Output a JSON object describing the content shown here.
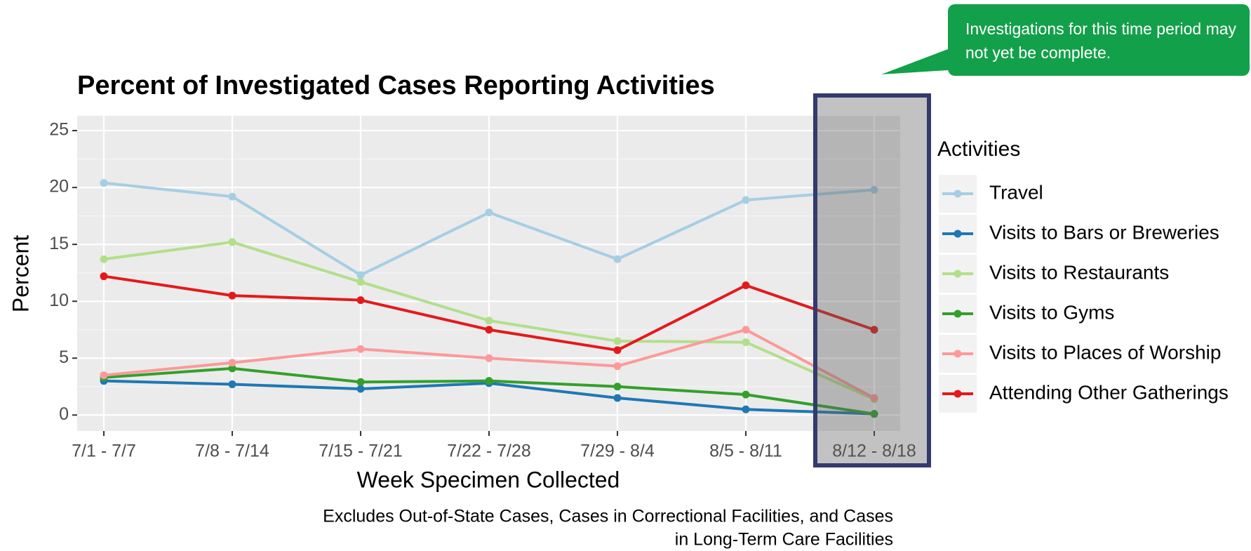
{
  "chart_data": {
    "type": "line",
    "title": "Percent of Investigated Cases Reporting Activities",
    "x_label": "Week Specimen Collected",
    "y_label": "Percent",
    "caption_lines": [
      "Excludes Out-of-State Cases, Cases in Correctional Facilities, and Cases",
      "in Long-Term Care Facilities"
    ],
    "annotation": "Investigations for this time period may not yet be complete.",
    "legend_title": "Activities",
    "categories": [
      "7/1 - 7/7",
      "7/8 - 7/14",
      "7/15 - 7/21",
      "7/22 - 7/28",
      "7/29 - 8/4",
      "8/5 - 8/11",
      "8/12 - 8/18"
    ],
    "series": [
      {
        "name": "Travel",
        "color": "#a6cee3",
        "values": [
          20.4,
          19.2,
          12.3,
          17.8,
          13.7,
          18.9,
          19.8
        ]
      },
      {
        "name": "Visits to Bars or Breweries",
        "color": "#1f78b4",
        "values": [
          3.0,
          2.7,
          2.3,
          2.8,
          1.5,
          0.5,
          0.1
        ]
      },
      {
        "name": "Visits to Restaurants",
        "color": "#b2df8a",
        "values": [
          13.7,
          15.2,
          11.7,
          8.3,
          6.5,
          6.4,
          1.4
        ]
      },
      {
        "name": "Visits to Gyms",
        "color": "#33a02c",
        "values": [
          3.3,
          4.1,
          2.9,
          3.0,
          2.5,
          1.8,
          0.1
        ]
      },
      {
        "name": "Visits to Places of Worship",
        "color": "#fb9a99",
        "values": [
          3.5,
          4.6,
          5.8,
          5.0,
          4.3,
          7.5,
          1.5
        ]
      },
      {
        "name": "Attending Other Gatherings",
        "color": "#e31a1c",
        "values": [
          12.2,
          10.5,
          10.1,
          7.5,
          5.7,
          11.4,
          7.5
        ]
      }
    ],
    "ylim": [
      -1.4,
      26.3
    ],
    "yticks": [
      0,
      5,
      10,
      15,
      20,
      25
    ],
    "grid": true,
    "legend_position": "right"
  }
}
